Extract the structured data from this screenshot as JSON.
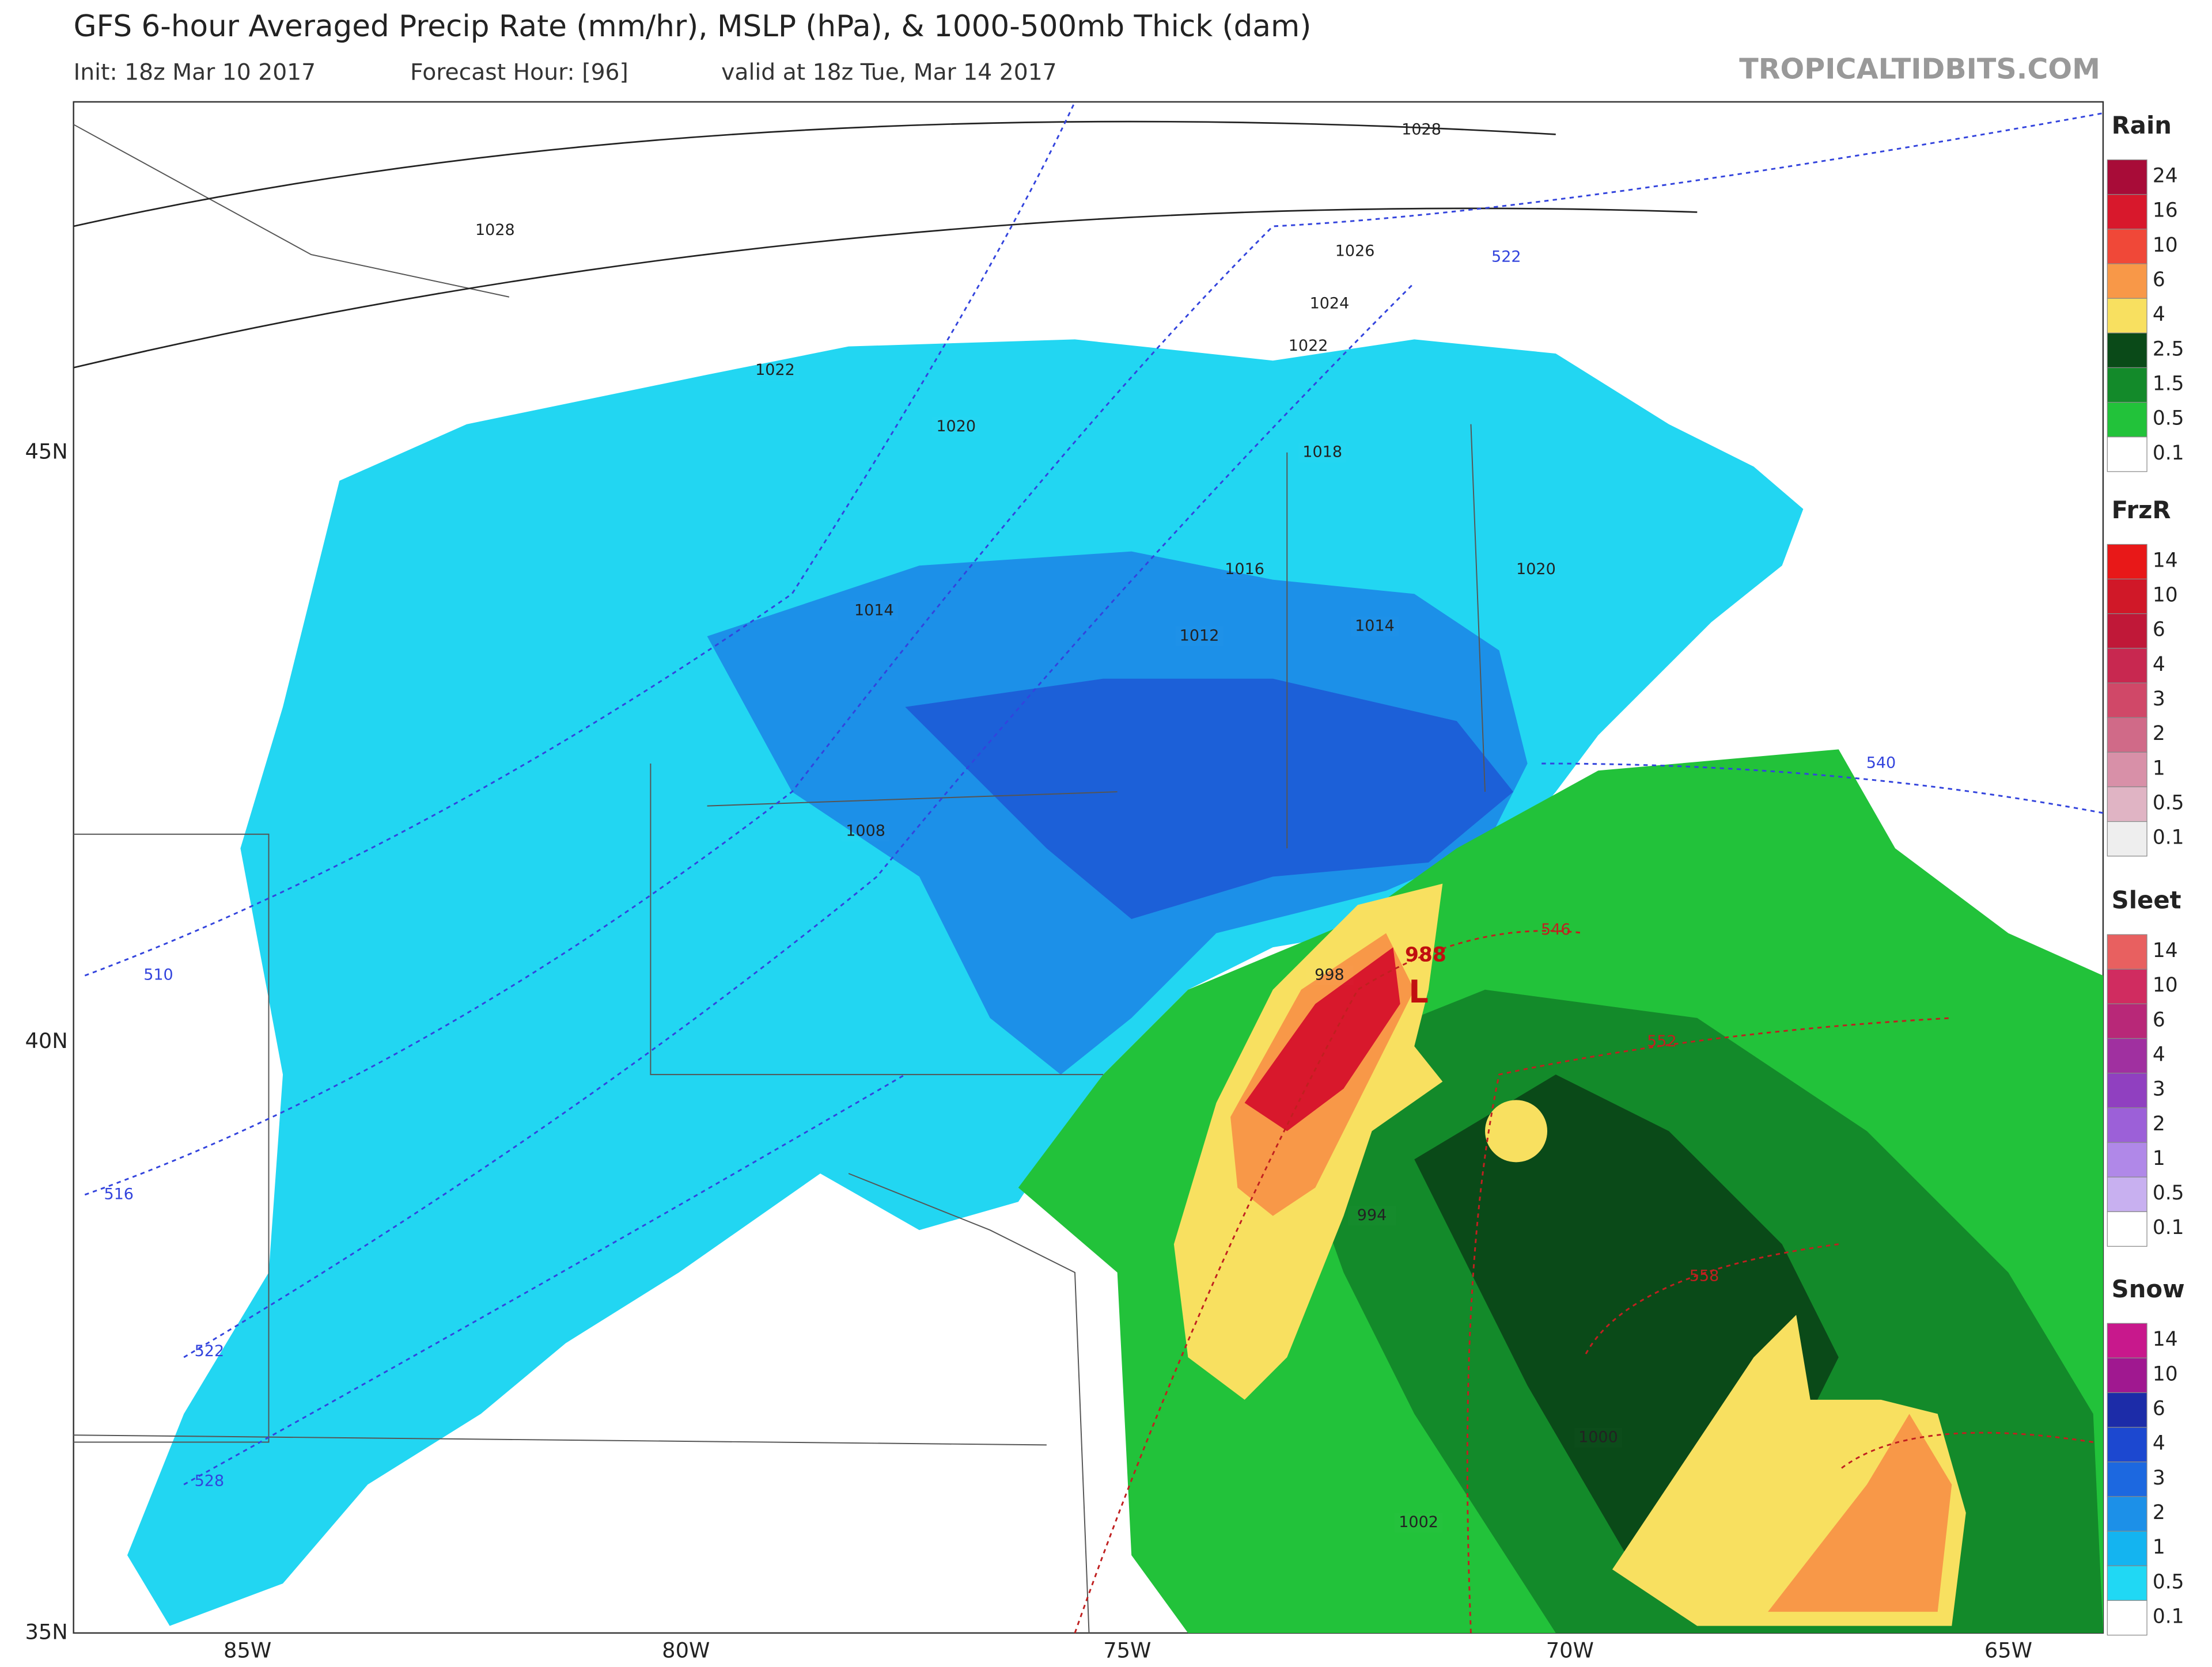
{
  "header": {
    "title": "GFS 6-hour Averaged Precip Rate (mm/hr), MSLP (hPa), & 1000-500mb Thick (dam)",
    "init": "Init: 18z Mar 10 2017",
    "forecast_hour": "Forecast Hour: [96]",
    "valid": "valid at 18z Tue, Mar 14 2017",
    "watermark": "TROPICALTIDBITS.COM"
  },
  "map": {
    "lat_labels": [
      "45N",
      "40N",
      "35N"
    ],
    "lon_labels": [
      "85W",
      "80W",
      "75W",
      "70W",
      "65W"
    ],
    "isobar_labels": [
      "1028",
      "1028",
      "1026",
      "1024",
      "1022",
      "1022",
      "1020",
      "1020",
      "1018",
      "1016",
      "1014",
      "1014",
      "1012",
      "1008",
      "998",
      "994",
      "1000",
      "1002"
    ],
    "thickness_labels": [
      "522",
      "522",
      "510",
      "516",
      "528",
      "546",
      "552",
      "558",
      "540"
    ],
    "low_pressure": "988",
    "low_center": "L"
  },
  "legend": [
    {
      "title": "Rain",
      "labels": [
        "24",
        "16",
        "10",
        "6",
        "4",
        "2.5",
        "1.5",
        "0.5",
        "0.1"
      ],
      "colors": [
        "#a80c38",
        "#d8182c",
        "#f04838",
        "#f89848",
        "#f8e060",
        "#0a4a18",
        "#138a2a",
        "#22c23a",
        "#ffffff"
      ]
    },
    {
      "title": "FrzR",
      "labels": [
        "14",
        "10",
        "6",
        "4",
        "3",
        "2",
        "1",
        "0.5",
        "0.1"
      ],
      "colors": [
        "#e81818",
        "#d01828",
        "#c01838",
        "#c82850",
        "#d04868",
        "#d06a88",
        "#d890a8",
        "#e0b4c4",
        "#eeeeee"
      ]
    },
    {
      "title": "Sleet",
      "labels": [
        "14",
        "10",
        "6",
        "4",
        "3",
        "2",
        "1",
        "0.5",
        "0.1"
      ],
      "colors": [
        "#e86060",
        "#d02c60",
        "#b82878",
        "#a030a0",
        "#9040c0",
        "#9c60d8",
        "#b088e8",
        "#c8b0f0",
        "#ffffff"
      ]
    },
    {
      "title": "Snow",
      "labels": [
        "14",
        "10",
        "6",
        "4",
        "3",
        "2",
        "1",
        "0.5",
        "0.1"
      ],
      "colors": [
        "#c8188c",
        "#a01890",
        "#1c2ca8",
        "#1c48d0",
        "#1c68e0",
        "#1c90e8",
        "#14b4f0",
        "#20d8f4",
        "#ffffff"
      ]
    }
  ]
}
